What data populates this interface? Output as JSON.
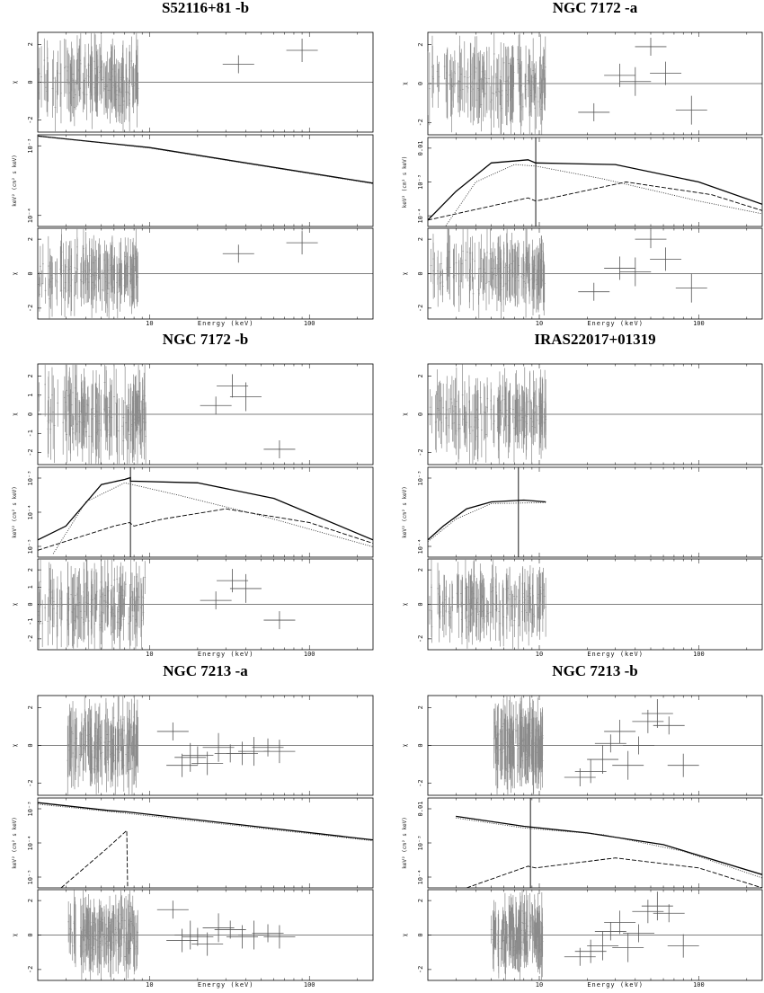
{
  "figure": {
    "panels": [
      {
        "title": "S52116+81 -b",
        "chi_top": {
          "ylabel": "χ",
          "yticks": [
            "2",
            "0",
            "-2"
          ],
          "ylim": [
            -2.5,
            2.5
          ]
        },
        "model": {
          "ylabel": "keV² (cm² s keV)",
          "yticks": [
            "10⁻³",
            "10⁻⁴"
          ],
          "ylim_log": [
            -5.6,
            -2.0
          ]
        },
        "chi_bottom": {
          "ylabel": "χ",
          "yticks": [
            "2",
            "0",
            "-2"
          ],
          "ylim": [
            -2.5,
            2.5
          ]
        },
        "xlabel": "Energy (keV)",
        "xticks": [
          "10",
          "100"
        ]
      },
      {
        "title": "NGC 7172 -a",
        "chi_top": {
          "ylabel": "χ",
          "yticks": [
            "2",
            "0",
            "-2"
          ],
          "ylim": [
            -2.5,
            2.5
          ]
        },
        "model": {
          "ylabel": "keV² (cm² s keV)",
          "yticks": [
            "0.01",
            "10⁻³",
            "10⁻⁴"
          ],
          "ylim_log": [
            -4.7,
            -1.9
          ]
        },
        "chi_bottom": {
          "ylabel": "χ",
          "yticks": [
            "2",
            "0",
            "-2"
          ],
          "ylim": [
            -2.5,
            2.5
          ]
        },
        "xlabel": "Energy (keV)",
        "xticks": [
          "10",
          "100"
        ]
      },
      {
        "title": "NGC 7172 -b",
        "chi_top": {
          "ylabel": "χ",
          "yticks": [
            "2",
            "1",
            "0",
            "-1",
            "-2"
          ],
          "ylim": [
            -2.3,
            2.3
          ]
        },
        "model": {
          "ylabel": "keV² (cm² s keV)",
          "yticks": [
            "10⁻³",
            "10⁻⁴",
            "10⁻⁵"
          ],
          "ylim_log": [
            -5.1,
            -2.5
          ]
        },
        "chi_bottom": {
          "ylabel": "χ",
          "yticks": [
            "2",
            "1",
            "0",
            "-1",
            "-2"
          ],
          "ylim": [
            -2.3,
            2.3
          ]
        },
        "xlabel": "Energy (keV)",
        "xticks": [
          "10",
          "100"
        ]
      },
      {
        "title": "IRAS22017+01319",
        "chi_top": {
          "ylabel": "χ",
          "yticks": [
            "2",
            "0",
            "-2"
          ],
          "ylim": [
            -2.5,
            2.5
          ]
        },
        "model": {
          "ylabel": "keV² (cm² s keV)",
          "yticks": [
            "10⁻³",
            "10⁻⁴"
          ],
          "ylim_log": [
            -4.8,
            -2.2
          ]
        },
        "chi_bottom": {
          "ylabel": "χ",
          "yticks": [
            "2",
            "0",
            "-2"
          ],
          "ylim": [
            -2.5,
            2.5
          ]
        },
        "xlabel": "Energy (keV)",
        "xticks": [
          "10",
          "100"
        ]
      },
      {
        "title": "NGC 7213 -a",
        "chi_top": {
          "ylabel": "χ",
          "yticks": [
            "2",
            "0",
            "-2"
          ],
          "ylim": [
            -2.5,
            2.5
          ]
        },
        "model": {
          "ylabel": "keV² (cm² s keV)",
          "yticks": [
            "10⁻³",
            "10⁻⁴",
            "10⁻⁵"
          ],
          "ylim_log": [
            -5.2,
            -2.3
          ]
        },
        "chi_bottom": {
          "ylabel": "χ",
          "yticks": [
            "2",
            "0",
            "-2"
          ],
          "ylim": [
            -2.5,
            2.5
          ]
        },
        "xlabel": "Energy (keV)",
        "xticks": [
          "10",
          "100"
        ]
      },
      {
        "title": "NGC 7213 -b",
        "chi_top": {
          "ylabel": "χ",
          "yticks": [
            "2",
            "0",
            "-2"
          ],
          "ylim": [
            -2.5,
            2.5
          ]
        },
        "model": {
          "ylabel": "keV² (cm² s keV)",
          "yticks": [
            "0.01",
            "10⁻³",
            "10⁻⁴"
          ],
          "ylim_log": [
            -4.6,
            -1.9
          ]
        },
        "chi_bottom": {
          "ylabel": "χ",
          "yticks": [
            "2",
            "0",
            "-2"
          ],
          "ylim": [
            -2.5,
            2.5
          ]
        },
        "xlabel": "Energy (keV)",
        "xticks": [
          "10",
          "100"
        ]
      }
    ]
  },
  "chart_data": [
    {
      "type": "scatter",
      "title": "S52116+81 -b",
      "xlabel": "Energy (keV)",
      "xscale": "log",
      "xlim": [
        2,
        250
      ],
      "series": [
        {
          "x": [
            36,
            90
          ],
          "y": [
            0.9,
            1.6
          ]
        },
        {
          "x": [
            36,
            90
          ],
          "y": [
            1.1,
            1.7
          ]
        }
      ],
      "model_lines": [
        {
          "style": "solid",
          "points": [
            [
              2,
              -2.05
            ],
            [
              10,
              -2.5
            ],
            [
              250,
              -3.9
            ]
          ]
        },
        {
          "style": "dotted",
          "points": [
            [
              2,
              -2.05
            ],
            [
              10,
              -2.52
            ],
            [
              250,
              -3.92
            ]
          ]
        }
      ]
    },
    {
      "type": "scatter",
      "title": "NGC 7172 -a",
      "xlabel": "Energy (keV)",
      "xscale": "log",
      "xlim": [
        2,
        250
      ],
      "series": [
        {
          "x": [
            22,
            32,
            40,
            50,
            62,
            90
          ],
          "y": [
            -1.4,
            0.4,
            0.1,
            1.8,
            0.5,
            -1.3
          ]
        },
        {
          "x": [
            22,
            32,
            40,
            50,
            62,
            90
          ],
          "y": [
            -1.0,
            0.3,
            0.1,
            1.9,
            0.8,
            -0.8
          ]
        }
      ],
      "model_lines": [
        {
          "style": "solid",
          "points": [
            [
              2,
              -4.5
            ],
            [
              3,
              -3.6
            ],
            [
              5,
              -2.7
            ],
            [
              8.5,
              -2.6
            ],
            [
              9.5,
              -2.7
            ],
            [
              30,
              -2.75
            ],
            [
              100,
              -3.3
            ],
            [
              250,
              -4.0
            ]
          ]
        },
        {
          "style": "dashed",
          "points": [
            [
              2,
              -4.5
            ],
            [
              8.5,
              -3.8
            ],
            [
              9.5,
              -3.9
            ],
            [
              12,
              -3.8
            ],
            [
              35,
              -3.3
            ],
            [
              120,
              -3.7
            ],
            [
              250,
              -4.2
            ]
          ]
        },
        {
          "style": "dotted",
          "points": [
            [
              2.5,
              -4.8
            ],
            [
              4,
              -3.3
            ],
            [
              7,
              -2.75
            ],
            [
              9.5,
              -2.8
            ],
            [
              25,
              -3.2
            ],
            [
              100,
              -3.9
            ],
            [
              250,
              -4.3
            ]
          ]
        }
      ]
    },
    {
      "type": "scatter",
      "title": "NGC 7172 -b",
      "xlabel": "Energy (keV)",
      "xscale": "log",
      "xlim": [
        2,
        250
      ],
      "series": [
        {
          "x": [
            26,
            33,
            40,
            65
          ],
          "y": [
            0.4,
            1.3,
            0.8,
            -1.6
          ]
        },
        {
          "x": [
            26,
            33,
            40,
            65
          ],
          "y": [
            0.2,
            1.2,
            0.8,
            -0.8
          ]
        }
      ],
      "model_lines": [
        {
          "style": "solid",
          "points": [
            [
              2,
              -4.6
            ],
            [
              3,
              -4.2
            ],
            [
              5,
              -3.0
            ],
            [
              7,
              -2.85
            ],
            [
              7.6,
              -2.8
            ],
            [
              7.6,
              -2.9
            ],
            [
              20,
              -2.95
            ],
            [
              60,
              -3.4
            ],
            [
              250,
              -4.6
            ]
          ]
        },
        {
          "style": "dashed",
          "points": [
            [
              2,
              -4.9
            ],
            [
              6,
              -4.2
            ],
            [
              7.5,
              -4.1
            ],
            [
              8,
              -4.2
            ],
            [
              12,
              -4.0
            ],
            [
              30,
              -3.7
            ],
            [
              100,
              -4.1
            ],
            [
              250,
              -4.7
            ]
          ]
        },
        {
          "style": "dotted",
          "points": [
            [
              2.5,
              -5.0
            ],
            [
              4,
              -3.5
            ],
            [
              7,
              -2.95
            ],
            [
              15,
              -3.3
            ],
            [
              50,
              -3.9
            ],
            [
              250,
              -4.8
            ]
          ]
        }
      ]
    },
    {
      "type": "scatter",
      "title": "IRAS22017+01319",
      "xlabel": "Energy (keV)",
      "xscale": "log",
      "xlim": [
        2,
        250
      ],
      "series": [
        {
          "x": [],
          "y": []
        },
        {
          "x": [],
          "y": []
        }
      ],
      "model_lines": [
        {
          "style": "solid",
          "points": [
            [
              2,
              -4.3
            ],
            [
              2.5,
              -3.9
            ],
            [
              3.5,
              -3.4
            ],
            [
              5,
              -3.2
            ],
            [
              8,
              -3.15
            ],
            [
              11,
              -3.2
            ]
          ]
        },
        {
          "style": "dotted",
          "points": [
            [
              2,
              -4.35
            ],
            [
              3,
              -3.7
            ],
            [
              5,
              -3.25
            ],
            [
              11,
              -3.22
            ]
          ]
        }
      ]
    },
    {
      "type": "scatter",
      "title": "NGC 7213 -a",
      "xlabel": "Energy (keV)",
      "xscale": "log",
      "xlim": [
        2,
        250
      ],
      "series": [
        {
          "x": [
            14,
            16,
            18,
            20,
            23,
            27,
            32,
            38,
            45,
            55,
            65
          ],
          "y": [
            0.7,
            -1.0,
            -0.6,
            -0.5,
            -0.9,
            -0.1,
            -0.4,
            -0.4,
            -0.3,
            -0.1,
            -0.3
          ]
        },
        {
          "x": [
            14,
            16,
            18,
            20,
            23,
            27,
            32,
            38,
            45,
            55,
            65
          ],
          "y": [
            1.4,
            -0.3,
            0.0,
            -0.1,
            -0.5,
            0.4,
            0.3,
            -0.1,
            0.0,
            0.1,
            -0.1
          ]
        }
      ],
      "model_lines": [
        {
          "style": "solid",
          "points": [
            [
              2,
              -2.45
            ],
            [
              5.5,
              -2.7
            ],
            [
              7.3,
              -2.75
            ],
            [
              250,
              -3.65
            ]
          ]
        },
        {
          "style": "dashed",
          "points": [
            [
              2.8,
              -5.2
            ],
            [
              5.5,
              -3.9
            ],
            [
              7.2,
              -3.35
            ],
            [
              7.3,
              -5.2
            ]
          ]
        },
        {
          "style": "dotted",
          "points": [
            [
              2,
              -2.5
            ],
            [
              6.8,
              -2.78
            ],
            [
              250,
              -3.68
            ]
          ]
        }
      ]
    },
    {
      "type": "scatter",
      "title": "NGC 7213 -b",
      "xlabel": "Energy (keV)",
      "xscale": "log",
      "xlim": [
        2,
        250
      ],
      "series": [
        {
          "x": [
            18,
            21,
            25,
            28,
            32,
            36,
            42,
            48,
            55,
            65,
            80
          ],
          "y": [
            -1.6,
            -1.3,
            -0.7,
            0.1,
            0.7,
            -1.0,
            0.0,
            1.2,
            1.6,
            1.0,
            -1.0
          ]
        },
        {
          "x": [
            18,
            21,
            25,
            28,
            32,
            36,
            42,
            48,
            55,
            65,
            80
          ],
          "y": [
            -1.2,
            -0.9,
            -0.6,
            0.2,
            0.7,
            -0.7,
            0.1,
            1.3,
            1.6,
            1.2,
            -0.6
          ]
        }
      ],
      "model_lines": [
        {
          "style": "solid",
          "points": [
            [
              3,
              -2.45
            ],
            [
              8,
              -2.75
            ],
            [
              20,
              -2.95
            ],
            [
              60,
              -3.3
            ],
            [
              250,
              -4.2
            ]
          ]
        },
        {
          "style": "dashed",
          "points": [
            [
              3.5,
              -4.6
            ],
            [
              8.5,
              -3.95
            ],
            [
              9.5,
              -4.0
            ],
            [
              30,
              -3.7
            ],
            [
              100,
              -4.0
            ],
            [
              250,
              -4.6
            ]
          ]
        },
        {
          "style": "dotted",
          "points": [
            [
              3,
              -2.5
            ],
            [
              8,
              -2.8
            ],
            [
              25,
              -3.0
            ],
            [
              80,
              -3.5
            ],
            [
              250,
              -4.3
            ]
          ]
        }
      ]
    }
  ]
}
